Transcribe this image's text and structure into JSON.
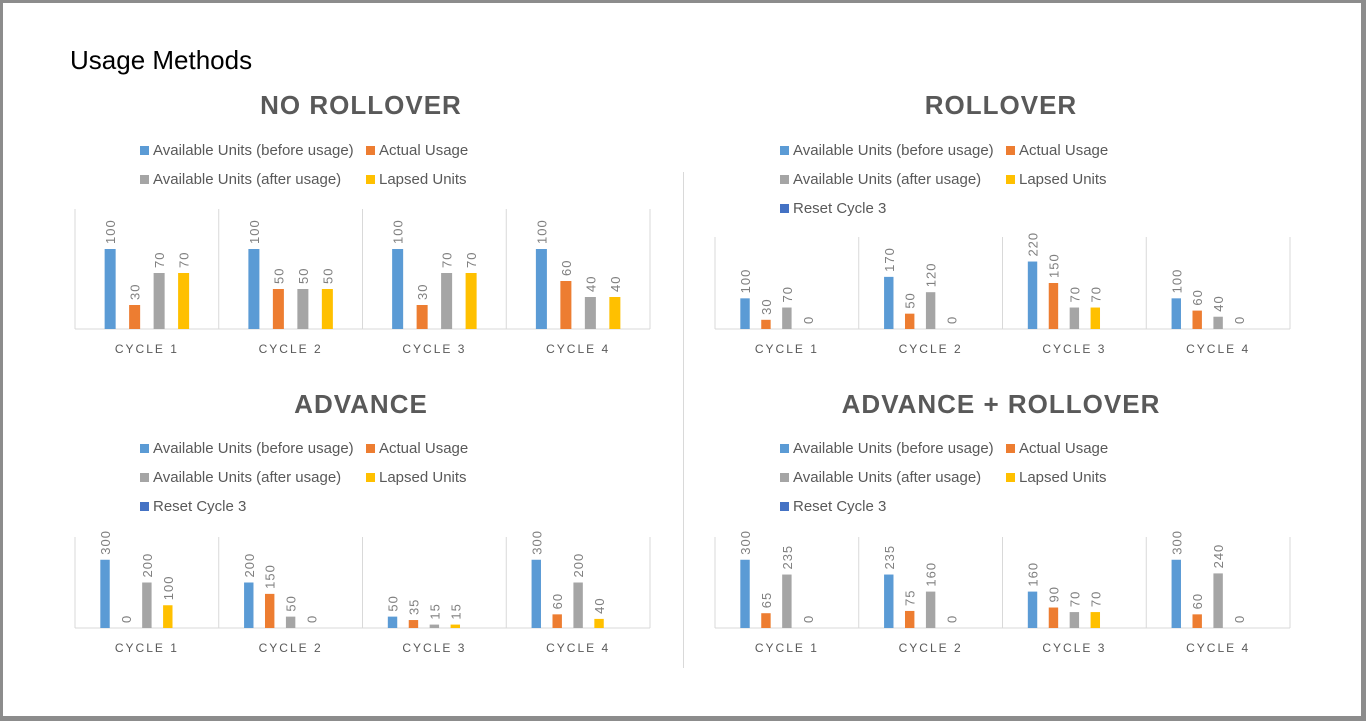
{
  "slide": {
    "title": "Usage Methods"
  },
  "chart_data": [
    {
      "type": "bar",
      "title": "NO ROLLOVER",
      "categories": [
        "CYCLE 1",
        "CYCLE 2",
        "CYCLE 3",
        "CYCLE 4"
      ],
      "ylim": [
        0,
        150
      ],
      "grid": false,
      "legend_placement": "top",
      "series": [
        {
          "name": "Available Units (before usage)",
          "color": "#5b9bd5",
          "values": [
            100,
            100,
            100,
            100
          ]
        },
        {
          "name": "Actual Usage",
          "color": "#ed7d31",
          "values": [
            30,
            50,
            30,
            60
          ]
        },
        {
          "name": "Available Units (after usage)",
          "color": "#a5a5a5",
          "values": [
            70,
            50,
            70,
            40
          ]
        },
        {
          "name": "Lapsed Units",
          "color": "#ffc000",
          "values": [
            70,
            50,
            70,
            40
          ]
        }
      ]
    },
    {
      "type": "bar",
      "title": "ROLLOVER",
      "categories": [
        "CYCLE 1",
        "CYCLE 2",
        "CYCLE 3",
        "CYCLE 4"
      ],
      "ylim": [
        0,
        300
      ],
      "grid": false,
      "legend_placement": "top",
      "series": [
        {
          "name": "Available Units (before usage)",
          "color": "#5b9bd5",
          "values": [
            100,
            170,
            220,
            100
          ]
        },
        {
          "name": "Actual Usage",
          "color": "#ed7d31",
          "values": [
            30,
            50,
            150,
            60
          ]
        },
        {
          "name": "Available Units (after usage)",
          "color": "#a5a5a5",
          "values": [
            70,
            120,
            70,
            40
          ]
        },
        {
          "name": "Lapsed Units",
          "color": "#ffc000",
          "values": [
            0,
            0,
            70,
            0
          ]
        },
        {
          "name": "Reset Cycle 3",
          "color": "#4472c4",
          "values": [
            null,
            null,
            null,
            null
          ]
        }
      ]
    },
    {
      "type": "bar",
      "title": "ADVANCE",
      "categories": [
        "CYCLE 1",
        "CYCLE 2",
        "CYCLE 3",
        "CYCLE 4"
      ],
      "ylim": [
        0,
        400
      ],
      "grid": false,
      "legend_placement": "top",
      "series": [
        {
          "name": "Available Units (before usage)",
          "color": "#5b9bd5",
          "values": [
            300,
            200,
            50,
            300
          ]
        },
        {
          "name": "Actual Usage",
          "color": "#ed7d31",
          "values": [
            0,
            150,
            35,
            60
          ]
        },
        {
          "name": "Available Units (after usage)",
          "color": "#a5a5a5",
          "values": [
            200,
            50,
            15,
            200
          ]
        },
        {
          "name": "Lapsed Units",
          "color": "#ffc000",
          "values": [
            100,
            0,
            15,
            40
          ]
        },
        {
          "name": "Reset Cycle 3",
          "color": "#4472c4",
          "values": [
            null,
            null,
            null,
            null
          ]
        }
      ]
    },
    {
      "type": "bar",
      "title": "ADVANCE + ROLLOVER",
      "categories": [
        "CYCLE 1",
        "CYCLE 2",
        "CYCLE 3",
        "CYCLE 4"
      ],
      "ylim": [
        0,
        400
      ],
      "grid": false,
      "legend_placement": "top",
      "series": [
        {
          "name": "Available Units (before usage)",
          "color": "#5b9bd5",
          "values": [
            300,
            235,
            160,
            300
          ]
        },
        {
          "name": "Actual Usage",
          "color": "#ed7d31",
          "values": [
            65,
            75,
            90,
            60
          ]
        },
        {
          "name": "Available Units (after usage)",
          "color": "#a5a5a5",
          "values": [
            235,
            160,
            70,
            240
          ]
        },
        {
          "name": "Lapsed Units",
          "color": "#ffc000",
          "values": [
            0,
            0,
            70,
            0
          ]
        },
        {
          "name": "Reset Cycle 3",
          "color": "#4472c4",
          "values": [
            null,
            null,
            null,
            null
          ]
        }
      ]
    }
  ]
}
